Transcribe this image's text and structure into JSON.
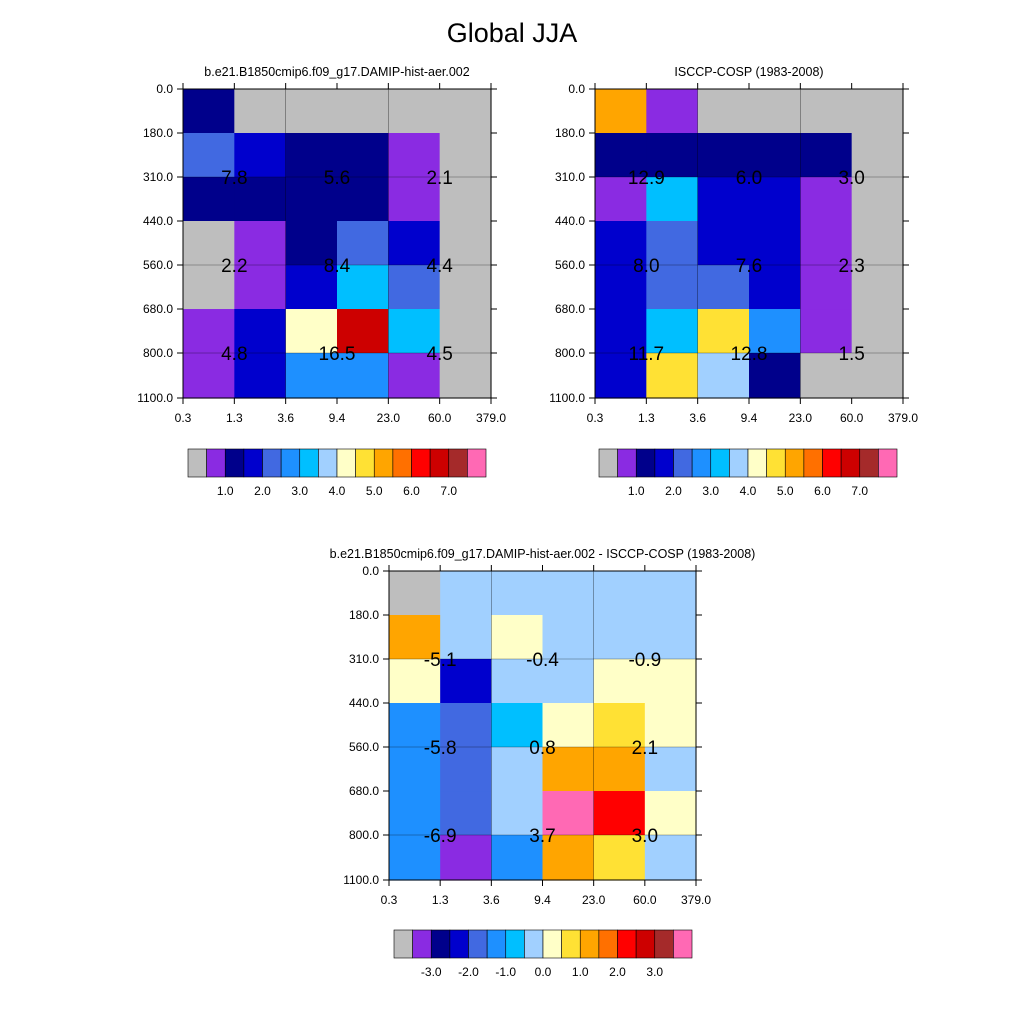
{
  "figure_title": "Global JJA",
  "colors": {
    "abs_fills": [
      "#bebebe",
      "#8a2be2",
      "#00008b",
      "#0000cd",
      "#4169e1",
      "#1e90ff",
      "#00bfff",
      "#a1d0ff",
      "#ffffc8",
      "#ffe134",
      "#ffa500",
      "#ff7000",
      "#ff0000",
      "#cd0000",
      "#a52a2a",
      "#ff69b4"
    ],
    "diff_fills": [
      "#bebebe",
      "#8a2be2",
      "#00008b",
      "#0000cd",
      "#4169e1",
      "#1e90ff",
      "#00bfff",
      "#a1d0ff",
      "#ffffc8",
      "#ffe134",
      "#ffa500",
      "#ff7000",
      "#ff0000",
      "#cd0000",
      "#a52a2a",
      "#ff69b4"
    ]
  },
  "chart_data": [
    {
      "type": "heatmap",
      "title": "b.e21.B1850cmip6.f09_g17.DAMIP-hist-aer.002",
      "x_tick_labels": [
        "0.3",
        "1.3",
        "3.6",
        "9.4",
        "23.0",
        "60.0",
        "379.0"
      ],
      "y_tick_labels": [
        "0.0",
        "180.0",
        "310.0",
        "440.0",
        "560.0",
        "680.0",
        "800.0",
        "1100.0"
      ],
      "cell_color_index": [
        [
          2,
          0,
          0,
          0,
          0,
          0
        ],
        [
          4,
          3,
          2,
          2,
          1,
          0
        ],
        [
          2,
          2,
          2,
          2,
          1,
          0
        ],
        [
          0,
          1,
          2,
          4,
          3,
          0
        ],
        [
          0,
          1,
          3,
          6,
          4,
          0
        ],
        [
          1,
          3,
          8,
          13,
          6,
          0
        ],
        [
          1,
          3,
          5,
          5,
          1,
          0
        ]
      ],
      "cell_labels": [
        {
          "text": "7.8",
          "col": 0.5,
          "row": 1
        },
        {
          "text": "5.6",
          "col": 2.5,
          "row": 1
        },
        {
          "text": "2.1",
          "col": 4.5,
          "row": 1
        },
        {
          "text": "2.2",
          "col": 0.5,
          "row": 3
        },
        {
          "text": "8.4",
          "col": 2.5,
          "row": 3
        },
        {
          "text": "4.4",
          "col": 4.5,
          "row": 3
        },
        {
          "text": "4.8",
          "col": 0.5,
          "row": 5
        },
        {
          "text": "16.5",
          "col": 2.5,
          "row": 5
        },
        {
          "text": "4.5",
          "col": 4.5,
          "row": 5
        }
      ],
      "colorbar_labels": [
        "1.0",
        "2.0",
        "3.0",
        "4.0",
        "5.0",
        "6.0",
        "7.0"
      ]
    },
    {
      "type": "heatmap",
      "title": "ISCCP-COSP (1983-2008)",
      "x_tick_labels": [
        "0.3",
        "1.3",
        "3.6",
        "9.4",
        "23.0",
        "60.0",
        "379.0"
      ],
      "y_tick_labels": [
        "0.0",
        "180.0",
        "310.0",
        "440.0",
        "560.0",
        "680.0",
        "800.0",
        "1100.0"
      ],
      "cell_color_index": [
        [
          10,
          1,
          0,
          0,
          0,
          0
        ],
        [
          2,
          2,
          2,
          2,
          2,
          0
        ],
        [
          1,
          6,
          3,
          3,
          1,
          0
        ],
        [
          3,
          4,
          3,
          3,
          1,
          0
        ],
        [
          3,
          4,
          4,
          3,
          1,
          0
        ],
        [
          3,
          6,
          9,
          5,
          1,
          0
        ],
        [
          3,
          9,
          7,
          2,
          0,
          0
        ]
      ],
      "cell_labels": [
        {
          "text": "12.9",
          "col": 0.5,
          "row": 1
        },
        {
          "text": "6.0",
          "col": 2.5,
          "row": 1
        },
        {
          "text": "3.0",
          "col": 4.5,
          "row": 1
        },
        {
          "text": "8.0",
          "col": 0.5,
          "row": 3
        },
        {
          "text": "7.6",
          "col": 2.5,
          "row": 3
        },
        {
          "text": "2.3",
          "col": 4.5,
          "row": 3
        },
        {
          "text": "11.7",
          "col": 0.5,
          "row": 5
        },
        {
          "text": "12.8",
          "col": 2.5,
          "row": 5
        },
        {
          "text": "1.5",
          "col": 4.5,
          "row": 5
        }
      ],
      "colorbar_labels": [
        "1.0",
        "2.0",
        "3.0",
        "4.0",
        "5.0",
        "6.0",
        "7.0"
      ]
    },
    {
      "type": "heatmap",
      "title": "b.e21.B1850cmip6.f09_g17.DAMIP-hist-aer.002 - ISCCP-COSP (1983-2008)",
      "x_tick_labels": [
        "0.3",
        "1.3",
        "3.6",
        "9.4",
        "23.0",
        "60.0",
        "379.0"
      ],
      "y_tick_labels": [
        "0.0",
        "180.0",
        "310.0",
        "440.0",
        "560.0",
        "680.0",
        "800.0",
        "1100.0"
      ],
      "cell_color_index": [
        [
          0,
          7,
          7,
          7,
          7,
          7
        ],
        [
          10,
          7,
          8,
          7,
          7,
          7
        ],
        [
          8,
          3,
          7,
          7,
          8,
          8
        ],
        [
          5,
          4,
          6,
          8,
          9,
          8
        ],
        [
          5,
          4,
          7,
          10,
          10,
          7
        ],
        [
          5,
          4,
          7,
          15,
          12,
          8
        ],
        [
          5,
          1,
          5,
          10,
          9,
          7
        ]
      ],
      "cell_labels": [
        {
          "text": "-5.1",
          "col": 0.5,
          "row": 1
        },
        {
          "text": "-0.4",
          "col": 2.5,
          "row": 1
        },
        {
          "text": "-0.9",
          "col": 4.5,
          "row": 1
        },
        {
          "text": "-5.8",
          "col": 0.5,
          "row": 3
        },
        {
          "text": "0.8",
          "col": 2.5,
          "row": 3
        },
        {
          "text": "2.1",
          "col": 4.5,
          "row": 3
        },
        {
          "text": "-6.9",
          "col": 0.5,
          "row": 5
        },
        {
          "text": "3.7",
          "col": 2.5,
          "row": 5
        },
        {
          "text": "3.0",
          "col": 4.5,
          "row": 5
        }
      ],
      "colorbar_labels": [
        "-3.0",
        "-2.0",
        "-1.0",
        "0.0",
        "1.0",
        "2.0",
        "3.0"
      ]
    }
  ]
}
